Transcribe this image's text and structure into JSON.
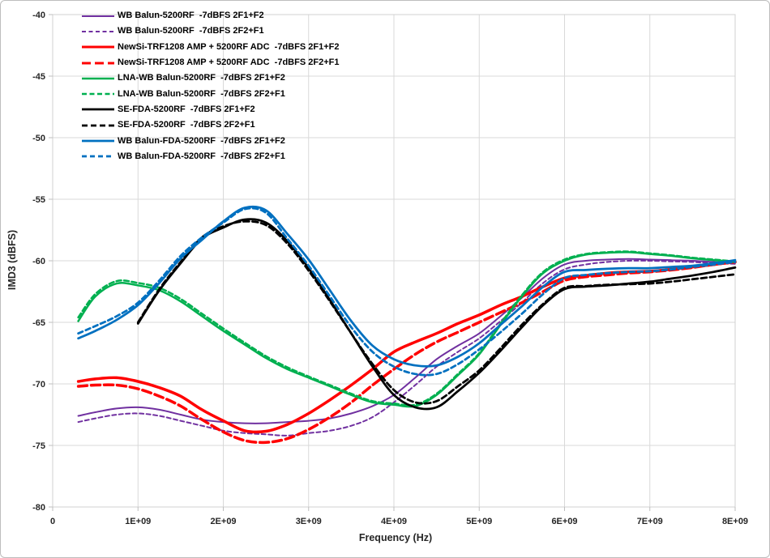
{
  "chart_data": {
    "type": "line",
    "title": "",
    "xlabel": "Frequency (Hz)",
    "ylabel": "IMD3 (dBFS)",
    "xlim_GHz": [
      0,
      8
    ],
    "ylim": [
      -80,
      -40
    ],
    "grid": true,
    "legend_position": "top-left",
    "background": "#FFFFFF",
    "gridline_color": "#D9D9D9",
    "plot_border_color": "#D0D0D0",
    "tick_mark_color": "#BFBFBF",
    "axis_label_color": "#262626",
    "x_tick_values_GHz": [
      0,
      1,
      2,
      3,
      4,
      5,
      6,
      7,
      8
    ],
    "x_tick_labels": [
      "0",
      "1E+09",
      "2E+09",
      "3E+09",
      "4E+09",
      "5E+09",
      "6E+09",
      "7E+09",
      "8E+09"
    ],
    "y_tick_values": [
      -40,
      -45,
      -50,
      -55,
      -60,
      -65,
      -70,
      -75,
      -80
    ],
    "y_tick_labels": [
      "-40",
      "-45",
      "-50",
      "-55",
      "-60",
      "-65",
      "-70",
      "-75",
      "-80"
    ],
    "x_GHz": [
      0.3,
      0.5,
      0.75,
      1.0,
      1.25,
      1.5,
      1.75,
      2.0,
      2.25,
      2.5,
      2.75,
      3.0,
      3.25,
      3.5,
      3.75,
      4.0,
      4.25,
      4.5,
      4.75,
      5.0,
      5.25,
      5.5,
      5.75,
      6.0,
      6.25,
      6.5,
      6.75,
      7.0,
      7.25,
      7.5,
      7.75,
      8.0
    ],
    "series": [
      {
        "name": "WB Balun-5200RF  -7dBFS 2F1+F2",
        "color": "#7030A0",
        "style": "solid",
        "width": 2,
        "dash": null,
        "values": [
          -72.6,
          -72.3,
          -72.0,
          -71.9,
          -72.1,
          -72.5,
          -72.9,
          -73.1,
          -73.2,
          -73.2,
          -73.1,
          -73.0,
          -72.8,
          -72.4,
          -71.8,
          -70.9,
          -69.5,
          -68.0,
          -66.9,
          -65.9,
          -64.5,
          -63.0,
          -61.4,
          -60.3,
          -60.0,
          -59.9,
          -59.85,
          -59.9,
          -59.95,
          -60.0,
          -60.1,
          -60.2
        ]
      },
      {
        "name": "WB Balun-5200RF  -7dBFS 2F2+F1",
        "color": "#7030A0",
        "style": "dashed",
        "width": 2,
        "dash": "5 3.5",
        "values": [
          -73.1,
          -72.8,
          -72.5,
          -72.4,
          -72.6,
          -73.0,
          -73.4,
          -73.8,
          -74.0,
          -74.1,
          -74.2,
          -74.0,
          -73.8,
          -73.4,
          -72.7,
          -71.5,
          -70.1,
          -68.6,
          -67.4,
          -66.3,
          -64.9,
          -63.4,
          -61.8,
          -60.7,
          -60.3,
          -60.1,
          -60.0,
          -60.0,
          -60.05,
          -60.1,
          -60.2,
          -60.25
        ]
      },
      {
        "name": "NewSi-TRF1208 AMP + 5200RF ADC  -7dBFS 2F1+F2",
        "color": "#FF0000",
        "style": "solid",
        "width": 3.5,
        "dash": null,
        "values": [
          -69.8,
          -69.6,
          -69.5,
          -69.8,
          -70.3,
          -71.0,
          -72.1,
          -73.0,
          -73.8,
          -73.85,
          -73.3,
          -72.4,
          -71.3,
          -70.1,
          -68.8,
          -67.4,
          -66.6,
          -65.9,
          -65.1,
          -64.4,
          -63.6,
          -62.9,
          -62.1,
          -61.4,
          -61.2,
          -61.0,
          -60.9,
          -60.85,
          -60.7,
          -60.5,
          -60.3,
          -60.1
        ]
      },
      {
        "name": "NewSi-TRF1208 AMP + 5200RF ADC  -7dBFS 2F2+F1",
        "color": "#FF0000",
        "style": "dashed",
        "width": 3.5,
        "dash": "11 5",
        "values": [
          -70.2,
          -70.1,
          -70.1,
          -70.4,
          -71.0,
          -71.8,
          -72.9,
          -73.9,
          -74.6,
          -74.75,
          -74.45,
          -73.7,
          -72.7,
          -71.5,
          -70.1,
          -68.8,
          -67.6,
          -66.6,
          -65.8,
          -65.0,
          -64.2,
          -63.4,
          -62.5,
          -61.6,
          -61.3,
          -61.15,
          -61.0,
          -60.9,
          -60.75,
          -60.55,
          -60.3,
          -60.1
        ]
      },
      {
        "name": "LNA-WB Balun-5200RF  -7dBFS 2F1+F2",
        "color": "#00B050",
        "style": "solid",
        "width": 2.5,
        "dash": null,
        "values": [
          -64.9,
          -62.9,
          -61.85,
          -62.0,
          -62.4,
          -63.3,
          -64.5,
          -65.7,
          -66.8,
          -67.9,
          -68.8,
          -69.5,
          -70.2,
          -70.9,
          -71.5,
          -71.7,
          -71.8,
          -70.9,
          -69.3,
          -67.6,
          -65.2,
          -62.9,
          -61.0,
          -60.0,
          -59.5,
          -59.35,
          -59.3,
          -59.45,
          -59.6,
          -59.8,
          -59.95,
          -60.1
        ]
      },
      {
        "name": "LNA-WB Balun-5200RF  -7dBFS 2F2+F1",
        "color": "#00B050",
        "style": "dashed",
        "width": 2.5,
        "dash": "6 3.5",
        "values": [
          -64.6,
          -62.7,
          -61.65,
          -61.8,
          -62.2,
          -63.1,
          -64.3,
          -65.5,
          -66.65,
          -67.75,
          -68.65,
          -69.4,
          -70.1,
          -70.8,
          -71.4,
          -71.6,
          -71.7,
          -70.8,
          -69.2,
          -67.5,
          -65.1,
          -62.8,
          -60.9,
          -59.9,
          -59.45,
          -59.3,
          -59.25,
          -59.4,
          -59.55,
          -59.75,
          -59.9,
          -60.05
        ]
      },
      {
        "name": "SE-FDA-5200RF  -7dBFS 2F1+F2",
        "color": "#000000",
        "style": "solid",
        "width": 2.75,
        "dash": null,
        "values": [
          null,
          null,
          null,
          -65.1,
          -62.4,
          -60.2,
          -58.2,
          -57.3,
          -56.65,
          -56.9,
          -58.4,
          -60.6,
          -63.2,
          -65.9,
          -68.6,
          -70.9,
          -71.9,
          -71.9,
          -70.6,
          -69.1,
          -67.3,
          -65.4,
          -63.6,
          -62.3,
          -62.1,
          -62.0,
          -61.85,
          -61.7,
          -61.45,
          -61.2,
          -60.9,
          -60.55
        ]
      },
      {
        "name": "SE-FDA-5200RF  -7dBFS 2F2+F1",
        "color": "#000000",
        "style": "dashed",
        "width": 2.75,
        "dash": "7 4",
        "values": [
          null,
          null,
          null,
          -65.0,
          -62.3,
          -60.1,
          -58.1,
          -57.2,
          -56.8,
          -57.1,
          -58.6,
          -60.8,
          -63.3,
          -65.9,
          -68.4,
          -70.5,
          -71.5,
          -71.4,
          -70.2,
          -68.9,
          -67.1,
          -65.2,
          -63.5,
          -62.2,
          -62.05,
          -61.95,
          -61.9,
          -61.85,
          -61.7,
          -61.5,
          -61.3,
          -61.1
        ]
      },
      {
        "name": "WB Balun-FDA-5200RF  -7dBFS 2F1+F2",
        "color": "#0070C0",
        "style": "solid",
        "width": 2.75,
        "dash": null,
        "values": [
          -66.3,
          -65.7,
          -64.8,
          -63.6,
          -61.8,
          -59.8,
          -58.3,
          -56.8,
          -55.7,
          -55.9,
          -57.8,
          -59.9,
          -62.4,
          -64.9,
          -66.9,
          -68.0,
          -68.5,
          -68.5,
          -67.8,
          -66.7,
          -65.2,
          -63.7,
          -62.1,
          -60.9,
          -60.75,
          -60.65,
          -60.6,
          -60.6,
          -60.5,
          -60.4,
          -60.2,
          -59.95
        ]
      },
      {
        "name": "WB Balun-FDA-5200RF  -7dBFS 2F2+F1",
        "color": "#0070C0",
        "style": "dashed",
        "width": 2.75,
        "dash": "6 4",
        "values": [
          -65.9,
          -65.3,
          -64.5,
          -63.4,
          -61.6,
          -59.6,
          -58.1,
          -56.9,
          -55.8,
          -56.1,
          -58.2,
          -60.4,
          -62.9,
          -65.4,
          -67.4,
          -68.6,
          -69.2,
          -69.2,
          -68.4,
          -67.2,
          -65.8,
          -64.3,
          -62.7,
          -61.4,
          -61.15,
          -61.0,
          -60.9,
          -60.85,
          -60.7,
          -60.5,
          -60.3,
          -60.1
        ]
      }
    ]
  }
}
